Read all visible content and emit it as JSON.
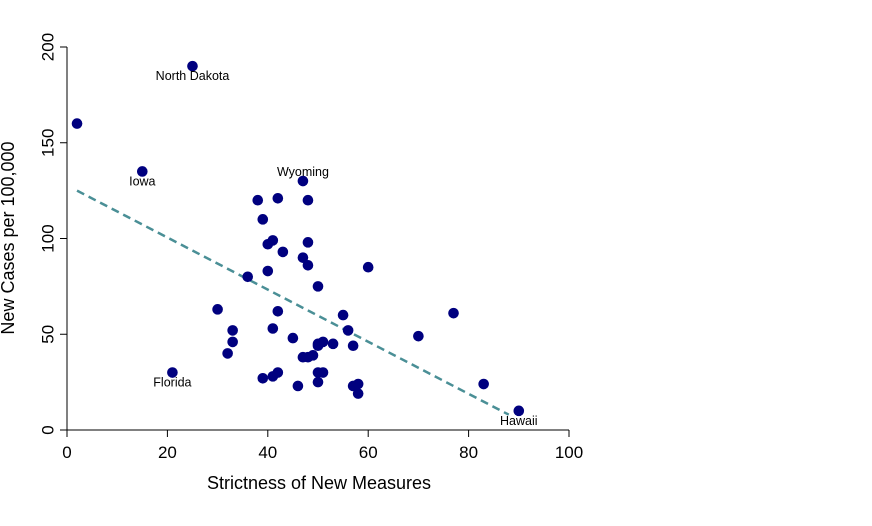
{
  "chart_data": {
    "type": "scatter",
    "title": "",
    "xlabel": "Strictness of New Measures",
    "ylabel": "New Cases per 100,000",
    "xlim": [
      0,
      100
    ],
    "ylim": [
      0,
      200
    ],
    "xticks": [
      "0",
      "20",
      "40",
      "60",
      "80",
      "100"
    ],
    "yticks": [
      "0",
      "50",
      "100",
      "150",
      "200"
    ],
    "grid": false,
    "colors": {
      "points": "#00007f",
      "trend": "#4a8f96",
      "axis": "#000000"
    },
    "points": [
      {
        "x": 2,
        "y": 160
      },
      {
        "x": 15,
        "y": 135
      },
      {
        "x": 25,
        "y": 190
      },
      {
        "x": 21,
        "y": 30
      },
      {
        "x": 90,
        "y": 10
      },
      {
        "x": 47,
        "y": 130
      },
      {
        "x": 30,
        "y": 63
      },
      {
        "x": 32,
        "y": 40
      },
      {
        "x": 33,
        "y": 46
      },
      {
        "x": 33,
        "y": 52
      },
      {
        "x": 36,
        "y": 80
      },
      {
        "x": 38,
        "y": 120
      },
      {
        "x": 39,
        "y": 110
      },
      {
        "x": 39,
        "y": 27
      },
      {
        "x": 40,
        "y": 97
      },
      {
        "x": 40,
        "y": 83
      },
      {
        "x": 41,
        "y": 99
      },
      {
        "x": 41,
        "y": 53
      },
      {
        "x": 41,
        "y": 28
      },
      {
        "x": 42,
        "y": 121
      },
      {
        "x": 42,
        "y": 62
      },
      {
        "x": 42,
        "y": 30
      },
      {
        "x": 43,
        "y": 93
      },
      {
        "x": 45,
        "y": 48
      },
      {
        "x": 46,
        "y": 23
      },
      {
        "x": 47,
        "y": 90
      },
      {
        "x": 47,
        "y": 38
      },
      {
        "x": 48,
        "y": 120
      },
      {
        "x": 48,
        "y": 98
      },
      {
        "x": 48,
        "y": 86
      },
      {
        "x": 48,
        "y": 38
      },
      {
        "x": 49,
        "y": 39
      },
      {
        "x": 50,
        "y": 75
      },
      {
        "x": 50,
        "y": 45
      },
      {
        "x": 50,
        "y": 44
      },
      {
        "x": 50,
        "y": 30
      },
      {
        "x": 50,
        "y": 25
      },
      {
        "x": 51,
        "y": 46
      },
      {
        "x": 51,
        "y": 30
      },
      {
        "x": 53,
        "y": 45
      },
      {
        "x": 55,
        "y": 60
      },
      {
        "x": 56,
        "y": 52
      },
      {
        "x": 57,
        "y": 44
      },
      {
        "x": 57,
        "y": 23
      },
      {
        "x": 58,
        "y": 24
      },
      {
        "x": 58,
        "y": 19
      },
      {
        "x": 60,
        "y": 85
      },
      {
        "x": 70,
        "y": 49
      },
      {
        "x": 77,
        "y": 61
      },
      {
        "x": 83,
        "y": 24
      }
    ],
    "annotations": [
      {
        "label": "North Dakota",
        "x": 25,
        "y": 190
      },
      {
        "label": "Iowa",
        "x": 15,
        "y": 135
      },
      {
        "label": "Wyoming",
        "x": 47,
        "y": 130
      },
      {
        "label": "Florida",
        "x": 21,
        "y": 30
      },
      {
        "label": "Hawaii",
        "x": 90,
        "y": 10
      }
    ],
    "trendline": {
      "x": [
        2,
        88
      ],
      "y": [
        125,
        8
      ]
    }
  }
}
